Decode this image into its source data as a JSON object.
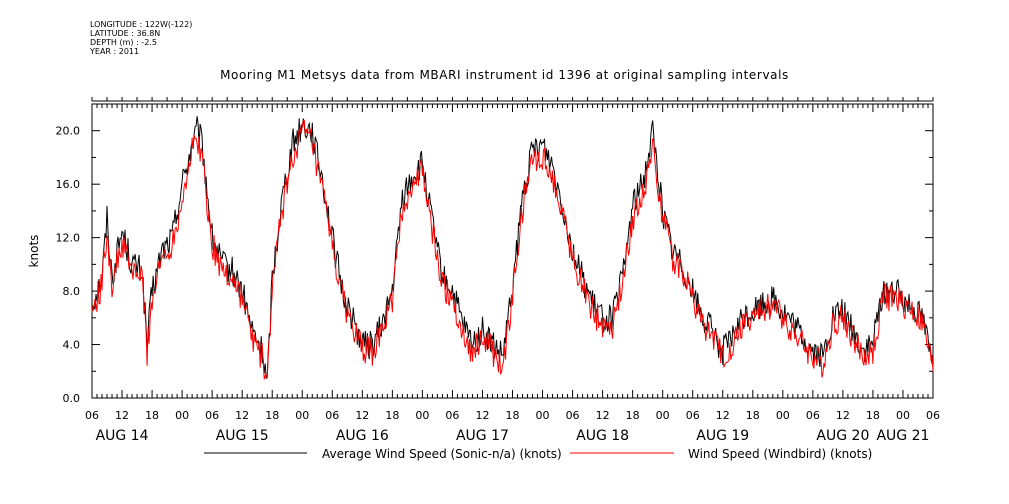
{
  "metadata": {
    "longitude": "LONGITUDE : 122W(-122)",
    "latitude": "LATITUDE : 36.8N",
    "depth": "DEPTH (m) : -2.5",
    "year": "YEAR : 2011"
  },
  "chart_data": {
    "type": "line",
    "title": "Mooring M1 Metsys data from MBARI instrument id 1396 at original sampling intervals",
    "ylabel": "knots",
    "xlabel": "",
    "ylim": [
      0,
      22
    ],
    "yticks": [
      "0.0",
      "4.0",
      "8.0",
      "12.0",
      "16.0",
      "20.0"
    ],
    "ytick_values": [
      0,
      4,
      8,
      12,
      16,
      20
    ],
    "x_hours_range": [
      6,
      174
    ],
    "x_tick_labels": [
      "06",
      "12",
      "18",
      "00",
      "06",
      "12",
      "18",
      "00",
      "06",
      "12",
      "18",
      "00",
      "06",
      "12",
      "18",
      "00",
      "06",
      "12",
      "18",
      "00",
      "06",
      "12",
      "18",
      "00",
      "06",
      "12",
      "18",
      "00",
      "06"
    ],
    "day_labels": [
      "AUG 14",
      "AUG 15",
      "AUG 16",
      "AUG 17",
      "AUG 18",
      "AUG 19",
      "AUG 20",
      "AUG 21"
    ],
    "day_label_hours": [
      12,
      36,
      60,
      84,
      108,
      132,
      156,
      168
    ],
    "grid": false,
    "series": [
      {
        "name": "Average Wind Speed (Sonic-n/a) (knots)",
        "color": "#000000",
        "x": [
          6,
          8,
          9,
          10,
          12,
          14,
          16,
          17,
          18,
          20,
          22,
          24,
          26,
          27,
          28,
          30,
          32,
          34,
          36,
          38,
          40,
          41,
          42,
          44,
          46,
          48,
          50,
          51,
          52,
          54,
          56,
          58,
          60,
          62,
          64,
          66,
          68,
          70,
          72,
          74,
          76,
          78,
          80,
          82,
          84,
          86,
          88,
          90,
          92,
          94,
          96,
          98,
          100,
          102,
          104,
          106,
          108,
          110,
          112,
          114,
          116,
          118,
          120,
          122,
          124,
          126,
          128,
          130,
          132,
          134,
          136,
          138,
          140,
          142,
          144,
          146,
          148,
          150,
          152,
          154,
          156,
          158,
          160,
          162,
          164,
          166,
          168,
          170,
          172,
          174
        ],
        "values": [
          7.0,
          9.0,
          13.5,
          9.0,
          12.5,
          10.0,
          9.5,
          4.0,
          8.0,
          11.0,
          12.0,
          16.0,
          19.0,
          20.0,
          19.0,
          12.0,
          10.0,
          9.5,
          8.0,
          5.0,
          3.5,
          1.0,
          9.0,
          15.0,
          19.0,
          20.5,
          20.0,
          18.0,
          16.5,
          12.0,
          8.0,
          6.0,
          4.0,
          4.0,
          5.5,
          8.0,
          15.0,
          16.5,
          17.5,
          13.0,
          9.0,
          8.0,
          5.5,
          4.0,
          5.0,
          4.0,
          3.0,
          8.0,
          15.0,
          18.5,
          19.0,
          17.5,
          14.5,
          11.0,
          9.0,
          7.0,
          6.0,
          6.0,
          9.0,
          14.5,
          16.0,
          20.0,
          14.0,
          11.0,
          10.0,
          8.0,
          6.0,
          5.0,
          3.5,
          4.5,
          6.0,
          6.5,
          7.0,
          7.5,
          6.5,
          5.5,
          4.5,
          3.5,
          3.0,
          6.0,
          6.5,
          5.0,
          3.5,
          4.0,
          8.0,
          8.0,
          7.5,
          7.0,
          6.0,
          2.5
        ]
      },
      {
        "name": "Wind Speed (Windbird) (knots)",
        "color": "#ff0000",
        "x": [
          6,
          8,
          9,
          10,
          12,
          14,
          16,
          17,
          18,
          20,
          22,
          24,
          26,
          27,
          28,
          30,
          32,
          34,
          36,
          38,
          40,
          41,
          42,
          44,
          46,
          48,
          50,
          51,
          52,
          54,
          56,
          58,
          60,
          62,
          64,
          66,
          68,
          70,
          72,
          74,
          76,
          78,
          80,
          82,
          84,
          86,
          88,
          90,
          92,
          94,
          96,
          98,
          100,
          102,
          104,
          106,
          108,
          110,
          112,
          114,
          116,
          118,
          120,
          122,
          124,
          126,
          128,
          130,
          132,
          134,
          136,
          138,
          140,
          142,
          144,
          146,
          148,
          150,
          152,
          154,
          156,
          158,
          160,
          162,
          164,
          166,
          168,
          170,
          172,
          174
        ],
        "values": [
          6.5,
          8.5,
          12.5,
          8.5,
          11.5,
          9.5,
          9.0,
          3.5,
          7.5,
          10.5,
          11.5,
          15.0,
          18.5,
          19.5,
          18.0,
          11.5,
          9.5,
          9.0,
          7.5,
          4.5,
          3.0,
          0.8,
          8.5,
          14.0,
          18.0,
          20.0,
          19.0,
          17.0,
          15.5,
          11.5,
          7.5,
          5.5,
          3.5,
          3.5,
          5.0,
          7.5,
          14.0,
          16.0,
          17.0,
          12.5,
          8.5,
          7.5,
          5.0,
          3.5,
          4.5,
          3.5,
          2.0,
          7.5,
          14.0,
          18.0,
          18.0,
          16.5,
          14.0,
          10.5,
          8.5,
          6.5,
          5.5,
          5.5,
          8.5,
          13.5,
          15.0,
          19.0,
          13.5,
          10.5,
          9.5,
          7.5,
          5.5,
          4.5,
          3.0,
          4.0,
          5.5,
          6.0,
          6.5,
          7.0,
          6.0,
          5.0,
          4.0,
          3.0,
          2.5,
          5.5,
          6.0,
          4.5,
          3.0,
          3.5,
          7.5,
          7.5,
          7.0,
          6.5,
          5.5,
          2.0
        ]
      }
    ]
  }
}
